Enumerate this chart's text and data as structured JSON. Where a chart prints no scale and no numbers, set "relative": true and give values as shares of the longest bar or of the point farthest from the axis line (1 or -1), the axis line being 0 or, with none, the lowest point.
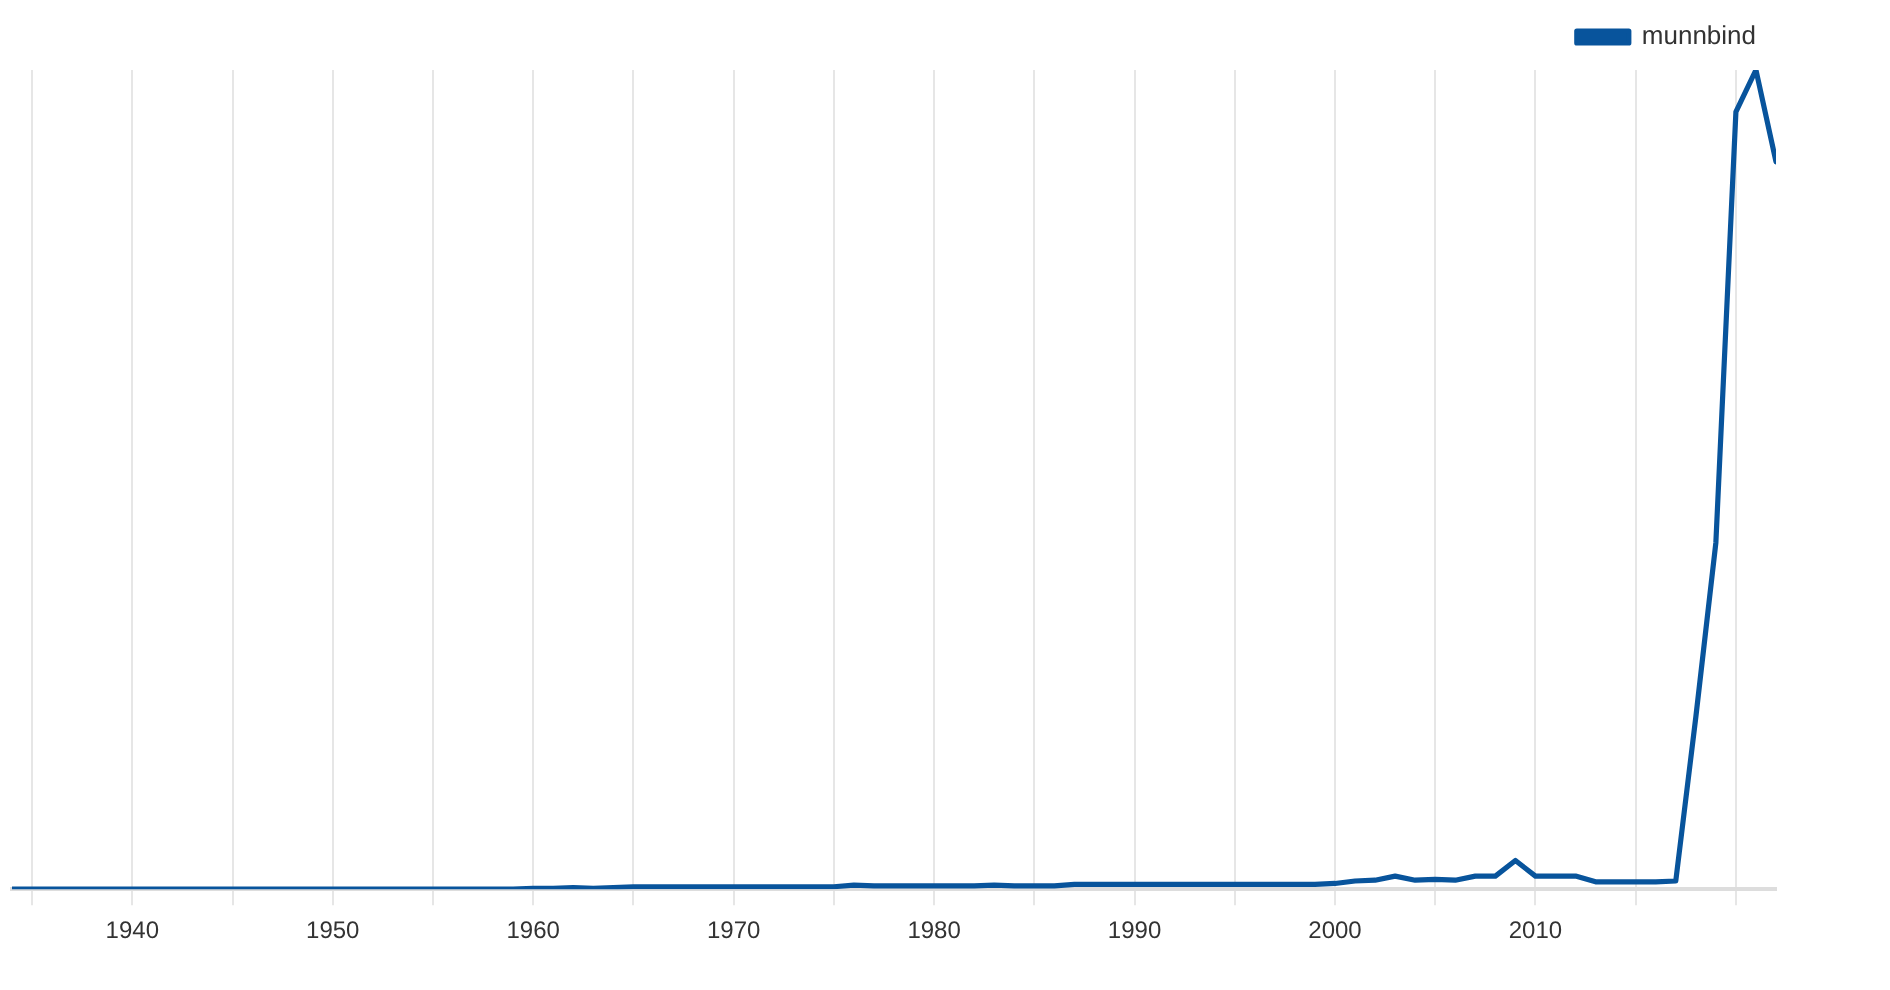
{
  "chart_data": {
    "type": "line",
    "relative": true,
    "x": [
      1934,
      1935,
      1936,
      1937,
      1938,
      1939,
      1940,
      1941,
      1942,
      1943,
      1944,
      1945,
      1946,
      1947,
      1948,
      1949,
      1950,
      1951,
      1952,
      1953,
      1954,
      1955,
      1956,
      1957,
      1958,
      1959,
      1960,
      1961,
      1962,
      1963,
      1964,
      1965,
      1966,
      1967,
      1968,
      1969,
      1970,
      1971,
      1972,
      1973,
      1974,
      1975,
      1976,
      1977,
      1978,
      1979,
      1980,
      1981,
      1982,
      1983,
      1984,
      1985,
      1986,
      1987,
      1988,
      1989,
      1990,
      1991,
      1992,
      1993,
      1994,
      1995,
      1996,
      1997,
      1998,
      1999,
      2000,
      2001,
      2002,
      2003,
      2004,
      2005,
      2006,
      2007,
      2008,
      2009,
      2010,
      2011,
      2012,
      2013,
      2014,
      2015,
      2016,
      2017,
      2018,
      2019,
      2020,
      2021,
      2022
    ],
    "series": [
      {
        "name": "munnbind",
        "color": "#08549c",
        "values": [
          0,
          0,
          0,
          0,
          0,
          0,
          0,
          0,
          0,
          0,
          0,
          0,
          0,
          0,
          0,
          0,
          0,
          0,
          0,
          0,
          0,
          0,
          0,
          0,
          0,
          0,
          0.001,
          0.001,
          0.002,
          0.001,
          0.002,
          0.003,
          0.003,
          0.003,
          0.003,
          0.003,
          0.003,
          0.003,
          0.003,
          0.003,
          0.003,
          0.003,
          0.005,
          0.004,
          0.004,
          0.004,
          0.004,
          0.004,
          0.004,
          0.005,
          0.004,
          0.004,
          0.004,
          0.006,
          0.006,
          0.006,
          0.006,
          0.006,
          0.006,
          0.006,
          0.006,
          0.006,
          0.006,
          0.006,
          0.006,
          0.006,
          0.007,
          0.01,
          0.011,
          0.016,
          0.011,
          0.012,
          0.011,
          0.016,
          0.016,
          0.035,
          0.016,
          0.016,
          0.016,
          0.009,
          0.009,
          0.009,
          0.009,
          0.01,
          0.21,
          0.423,
          0.949,
          1,
          0.888
        ]
      }
    ],
    "xlim": [
      1934,
      2022
    ],
    "xticks": [
      {
        "value": 1935,
        "label": null
      },
      1940,
      {
        "value": 1945,
        "label": null
      },
      1950,
      {
        "value": 1955,
        "label": null
      },
      1960,
      {
        "value": 1965,
        "label": null
      },
      1970,
      {
        "value": 1975,
        "label": null
      },
      1980,
      {
        "value": 1985,
        "label": null
      },
      1990,
      {
        "value": 1995,
        "label": null
      },
      2000,
      {
        "value": 2005,
        "label": null
      },
      2010,
      {
        "value": 2015,
        "label": null
      },
      {
        "value": 2020,
        "label": null
      }
    ],
    "grid": "x",
    "legend": "top right",
    "marker": "none",
    "line_style": "solid"
  }
}
